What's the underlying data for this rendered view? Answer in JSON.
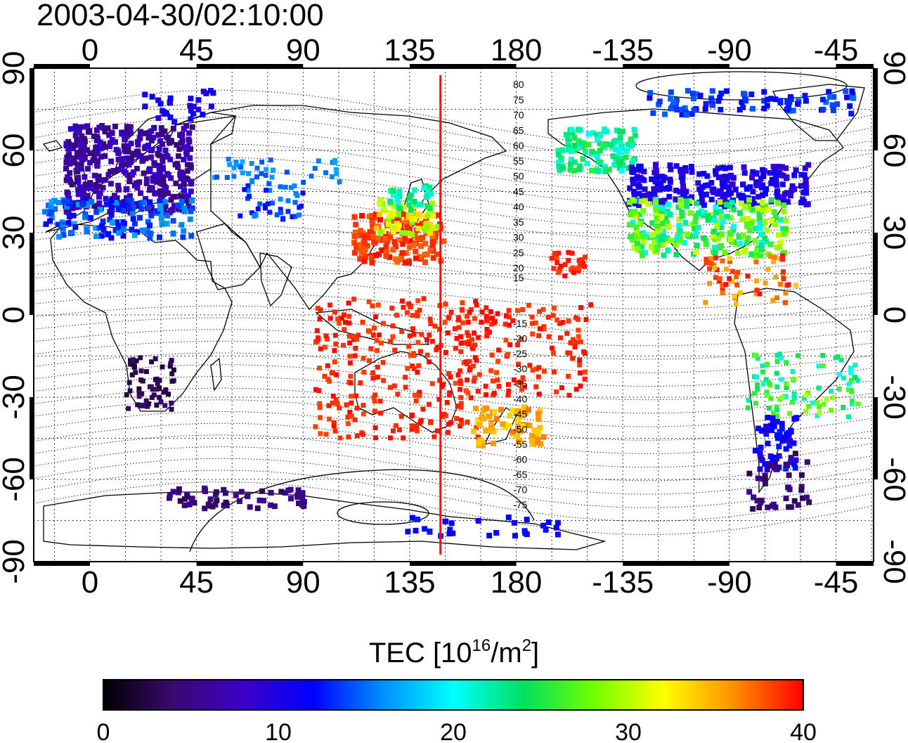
{
  "title": "2003-04-30/02:10:00",
  "map": {
    "lon_ticks": [
      "0",
      "45",
      "90",
      "135",
      "180",
      "-135",
      "-90",
      "-45"
    ],
    "lat_ticks": [
      "90",
      "60",
      "30",
      "0",
      "-30",
      "-60",
      "-90"
    ],
    "mlat_contour_labels": [
      "80",
      "75",
      "70",
      "65",
      "60",
      "55",
      "50",
      "45",
      "40",
      "35",
      "30",
      "25",
      "20",
      "15",
      "-15",
      "-20",
      "-25",
      "-30",
      "-35",
      "-40",
      "-45",
      "-50",
      "-55",
      "-60",
      "-65",
      "-70",
      "-75"
    ],
    "marker_color": "#ff0000",
    "marker_lon": 148
  },
  "colorbar": {
    "label_main": "TEC  [10",
    "label_exp1": "16",
    "label_mid": "/m",
    "label_exp2": "2",
    "label_end": "]",
    "ticks": [
      "0",
      "10",
      "20",
      "30",
      "40"
    ],
    "range": [
      0,
      40
    ],
    "colormap": [
      "#000000",
      "#3a0a6e",
      "#3c00c8",
      "#0000ff",
      "#0090ff",
      "#00ffff",
      "#00e060",
      "#70ff00",
      "#ffff00",
      "#ff9000",
      "#ff0000"
    ]
  }
}
